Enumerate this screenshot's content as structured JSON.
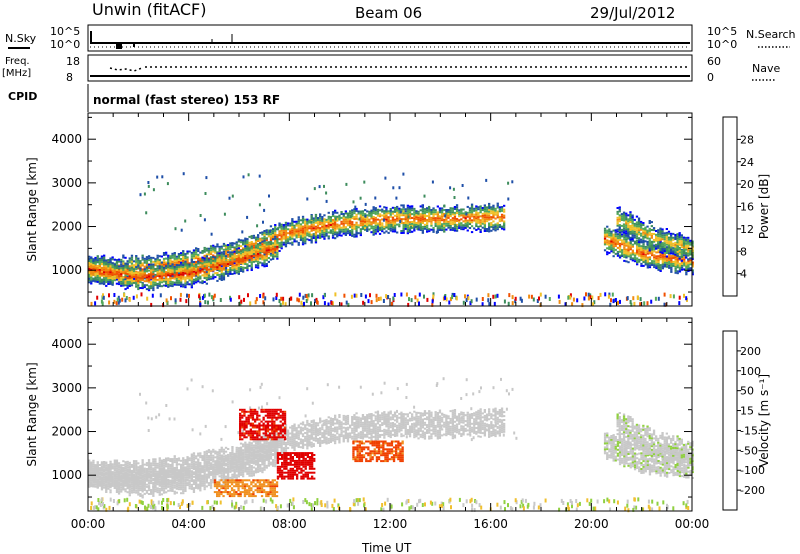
{
  "header": {
    "station": "Unwin (fitACF)",
    "beam": "Beam 06",
    "date": "29/Jul/2012"
  },
  "strip1": {
    "left_label": "N.Sky",
    "right_label": "N.Search",
    "left_ticks": [
      "10^5",
      "10^0"
    ],
    "right_ticks": [
      "10^5",
      "10^0"
    ]
  },
  "strip2": {
    "left_label_a": "Freq.",
    "left_label_b": "[MHz]",
    "right_label": "Nave",
    "left_ticks": [
      "18",
      "8"
    ],
    "right_ticks": [
      "60",
      "0"
    ]
  },
  "cpid": {
    "label": "CPID",
    "text": "normal (fast stereo) 153 RF"
  },
  "colors": {
    "power": [
      "#0000ff",
      "#1f4fa8",
      "#3d8c5c",
      "#52a85a",
      "#f0c028",
      "#f08c10",
      "#f05000",
      "#e00000"
    ],
    "velocity": [
      "#e00000",
      "#f04000",
      "#f09020",
      "#f0c030",
      "#c8c8c8",
      "#90d040",
      "#3a9a55",
      "#2a5ab0",
      "#0000e0"
    ]
  },
  "chart_data": [
    {
      "type": "heatmap",
      "title": "Power",
      "xlabel": "Time UT",
      "ylabel": "Slant Range [km]",
      "x_ticks": [
        "00:00",
        "04:00",
        "08:00",
        "12:00",
        "16:00",
        "20:00",
        "00:00"
      ],
      "y_ticks": [
        "1000",
        "2000",
        "3000",
        "4000"
      ],
      "ylim": [
        180,
        4600
      ],
      "xlim_hours": [
        0,
        24
      ],
      "colorbar": {
        "label": "Power [dB]",
        "levels": [
          "4",
          "8",
          "12",
          "16",
          "20",
          "24",
          "28"
        ]
      },
      "echo_bands": [
        {
          "t": [
            0.0,
            2.0,
            4.0,
            6.0,
            8.0,
            10.0,
            12.0,
            14.0,
            16.5
          ],
          "range_km": [
            1000,
            1000,
            1150,
            1400,
            1850,
            2050,
            2150,
            2150,
            2200
          ],
          "peak_db": 26
        },
        {
          "t": [
            0.0,
            2.0,
            4.0,
            6.0,
            7.5
          ],
          "range_km": [
            1000,
            800,
            900,
            1200,
            1500
          ],
          "peak_db": 28
        },
        {
          "t": [
            20.5,
            22.0,
            24.0
          ],
          "range_km": [
            1700,
            1350,
            1200
          ],
          "peak_db": 26
        },
        {
          "t": [
            21.0,
            22.5,
            24.0
          ],
          "range_km": [
            2150,
            1700,
            1450
          ],
          "peak_db": 20
        }
      ]
    },
    {
      "type": "heatmap",
      "title": "Velocity",
      "xlabel": "Time UT",
      "ylabel": "Slant Range [km]",
      "x_ticks": [
        "00:00",
        "04:00",
        "08:00",
        "12:00",
        "16:00",
        "20:00",
        "00:00"
      ],
      "y_ticks": [
        "1000",
        "2000",
        "3000",
        "4000"
      ],
      "ylim": [
        180,
        4600
      ],
      "xlim_hours": [
        0,
        24
      ],
      "colorbar": {
        "label": "Velocity [m s⁻¹]",
        "levels": [
          "200",
          "100",
          "50",
          "15",
          "-15",
          "-50",
          "-100",
          "-200"
        ]
      },
      "patches": [
        {
          "t": [
            6.0,
            7.8
          ],
          "range_km": [
            1800,
            2500
          ],
          "velocity": -220
        },
        {
          "t": [
            7.5,
            9.0
          ],
          "range_km": [
            900,
            1500
          ],
          "velocity": -230
        },
        {
          "t": [
            5.0,
            7.5
          ],
          "range_km": [
            500,
            900
          ],
          "velocity": -80
        },
        {
          "t": [
            10.5,
            12.5
          ],
          "range_km": [
            1300,
            1750
          ],
          "velocity": -120
        }
      ]
    }
  ]
}
